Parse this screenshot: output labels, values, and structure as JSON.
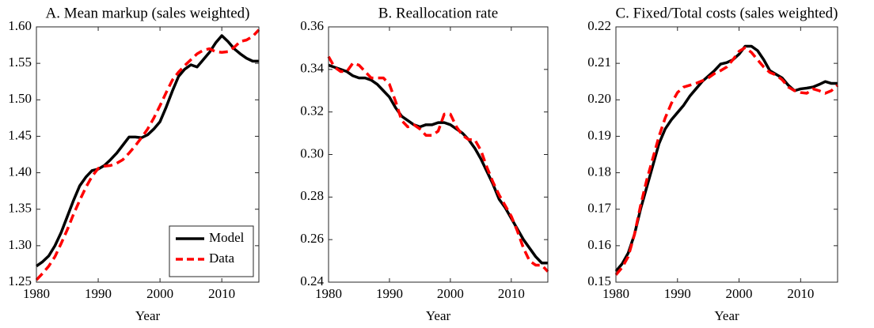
{
  "chart_data": [
    {
      "type": "line",
      "title": "A. Mean markup (sales weighted)",
      "x_label": "Year",
      "x": [
        1980,
        1981,
        1982,
        1983,
        1984,
        1985,
        1986,
        1987,
        1988,
        1989,
        1990,
        1991,
        1992,
        1993,
        1994,
        1995,
        1996,
        1997,
        1998,
        1999,
        2000,
        2001,
        2002,
        2003,
        2004,
        2005,
        2006,
        2007,
        2008,
        2009,
        2010,
        2011,
        2012,
        2013,
        2014,
        2015,
        2016
      ],
      "xlim": [
        1980,
        2016
      ],
      "xticks": [
        1980,
        1990,
        2000,
        2010
      ],
      "ylim": [
        1.25,
        1.6
      ],
      "yticks": [
        {
          "value": 1.25,
          "label": "1.25"
        },
        {
          "value": 1.3,
          "label": "1.30"
        },
        {
          "value": 1.35,
          "label": "1.35"
        },
        {
          "value": 1.4,
          "label": "1.40"
        },
        {
          "value": 1.45,
          "label": "1.45"
        },
        {
          "value": 1.5,
          "label": "1.50"
        },
        {
          "value": 1.55,
          "label": "1.55"
        },
        {
          "value": 1.6,
          "label": "1.60"
        }
      ],
      "legend": "lower right",
      "series": [
        {
          "name": "Model",
          "color": "#000000",
          "dashed": false,
          "values": [
            1.272,
            1.278,
            1.286,
            1.3,
            1.318,
            1.34,
            1.362,
            1.382,
            1.394,
            1.403,
            1.405,
            1.41,
            1.418,
            1.427,
            1.438,
            1.449,
            1.449,
            1.448,
            1.452,
            1.46,
            1.47,
            1.49,
            1.512,
            1.532,
            1.542,
            1.548,
            1.545,
            1.555,
            1.565,
            1.578,
            1.588,
            1.58,
            1.57,
            1.563,
            1.557,
            1.553,
            1.553
          ]
        },
        {
          "name": "Data",
          "color": "#ff0000",
          "dashed": true,
          "values": [
            1.253,
            1.262,
            1.272,
            1.285,
            1.303,
            1.322,
            1.343,
            1.362,
            1.38,
            1.395,
            1.406,
            1.409,
            1.41,
            1.413,
            1.418,
            1.427,
            1.437,
            1.448,
            1.46,
            1.475,
            1.492,
            1.51,
            1.527,
            1.538,
            1.547,
            1.555,
            1.563,
            1.568,
            1.57,
            1.566,
            1.565,
            1.566,
            1.572,
            1.58,
            1.582,
            1.587,
            1.596
          ]
        }
      ]
    },
    {
      "type": "line",
      "title": "B. Reallocation rate",
      "x_label": "Year",
      "x": [
        1980,
        1981,
        1982,
        1983,
        1984,
        1985,
        1986,
        1987,
        1988,
        1989,
        1990,
        1991,
        1992,
        1993,
        1994,
        1995,
        1996,
        1997,
        1998,
        1999,
        2000,
        2001,
        2002,
        2003,
        2004,
        2005,
        2006,
        2007,
        2008,
        2009,
        2010,
        2011,
        2012,
        2013,
        2014,
        2015,
        2016
      ],
      "xlim": [
        1980,
        2016
      ],
      "xticks": [
        1980,
        1990,
        2000,
        2010
      ],
      "ylim": [
        0.24,
        0.36
      ],
      "yticks": [
        0.24,
        0.26,
        0.28,
        {
          "value": 0.3,
          "label": "0.30"
        },
        0.32,
        0.34,
        0.36
      ],
      "series": [
        {
          "name": "Model",
          "color": "#000000",
          "dashed": false,
          "values": [
            0.342,
            0.341,
            0.34,
            0.339,
            0.337,
            0.336,
            0.336,
            0.335,
            0.333,
            0.33,
            0.327,
            0.322,
            0.318,
            0.316,
            0.314,
            0.313,
            0.314,
            0.314,
            0.315,
            0.315,
            0.314,
            0.312,
            0.31,
            0.307,
            0.303,
            0.298,
            0.292,
            0.286,
            0.279,
            0.275,
            0.27,
            0.265,
            0.26,
            0.256,
            0.252,
            0.249,
            0.249
          ]
        },
        {
          "name": "Data",
          "color": "#ff0000",
          "dashed": true,
          "values": [
            0.346,
            0.341,
            0.339,
            0.339,
            0.343,
            0.342,
            0.339,
            0.336,
            0.336,
            0.336,
            0.333,
            0.325,
            0.316,
            0.313,
            0.314,
            0.312,
            0.309,
            0.309,
            0.311,
            0.319,
            0.319,
            0.313,
            0.309,
            0.307,
            0.307,
            0.302,
            0.294,
            0.287,
            0.281,
            0.276,
            0.271,
            0.264,
            0.256,
            0.25,
            0.248,
            0.248,
            0.245
          ]
        }
      ]
    },
    {
      "type": "line",
      "title": "C. Fixed/Total costs (sales weighted)",
      "x_label": "Year",
      "x": [
        1980,
        1981,
        1982,
        1983,
        1984,
        1985,
        1986,
        1987,
        1988,
        1989,
        1990,
        1991,
        1992,
        1993,
        1994,
        1995,
        1996,
        1997,
        1998,
        1999,
        2000,
        2001,
        2002,
        2003,
        2004,
        2005,
        2006,
        2007,
        2008,
        2009,
        2010,
        2011,
        2012,
        2013,
        2014,
        2015,
        2016
      ],
      "xlim": [
        1980,
        2016
      ],
      "xticks": [
        1980,
        1990,
        2000,
        2010
      ],
      "ylim": [
        0.15,
        0.22
      ],
      "yticks": [
        0.15,
        0.16,
        0.17,
        0.18,
        0.19,
        {
          "value": 0.2,
          "label": "0.20"
        },
        0.21,
        0.22
      ],
      "series": [
        {
          "name": "Model",
          "color": "#000000",
          "dashed": false,
          "values": [
            0.153,
            0.155,
            0.158,
            0.163,
            0.17,
            0.176,
            0.182,
            0.188,
            0.192,
            0.1945,
            0.1965,
            0.1985,
            0.201,
            0.203,
            0.205,
            0.2065,
            0.208,
            0.2098,
            0.2102,
            0.211,
            0.2125,
            0.2147,
            0.2147,
            0.2135,
            0.211,
            0.208,
            0.207,
            0.206,
            0.204,
            0.2025,
            0.203,
            0.2032,
            0.2035,
            0.2042,
            0.205,
            0.2045,
            0.2045
          ]
        },
        {
          "name": "Data",
          "color": "#ff0000",
          "dashed": true,
          "values": [
            0.152,
            0.154,
            0.157,
            0.163,
            0.171,
            0.178,
            0.184,
            0.19,
            0.195,
            0.199,
            0.202,
            0.2035,
            0.204,
            0.2045,
            0.2052,
            0.206,
            0.2072,
            0.208,
            0.209,
            0.211,
            0.2133,
            0.2143,
            0.213,
            0.211,
            0.209,
            0.2075,
            0.2068,
            0.2055,
            0.2035,
            0.2025,
            0.202,
            0.2018,
            0.203,
            0.2025,
            0.2018,
            0.2025,
            0.204
          ]
        }
      ]
    }
  ]
}
